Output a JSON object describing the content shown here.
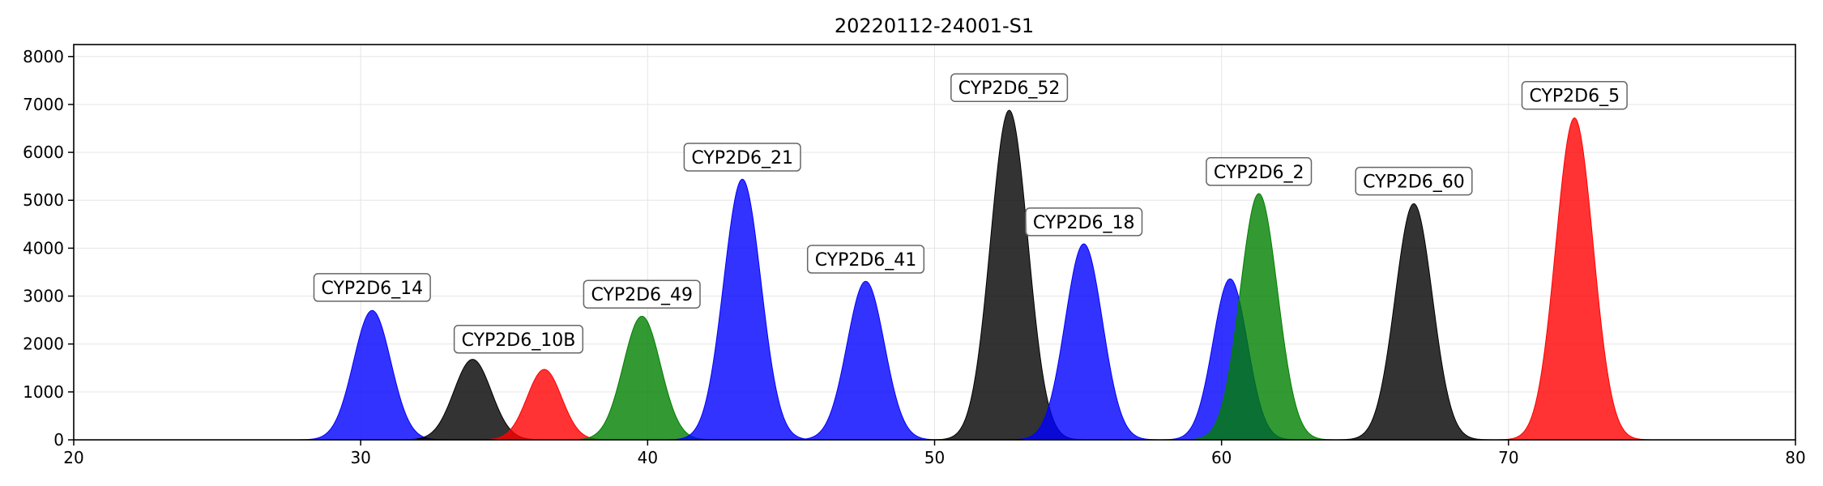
{
  "chart_data": {
    "type": "area",
    "title": "20220112-24001-S1",
    "xlabel": "",
    "ylabel": "",
    "xlim": [
      20,
      80
    ],
    "ylim": [
      0,
      8250
    ],
    "xticks": [
      20,
      30,
      40,
      50,
      60,
      70,
      80
    ],
    "yticks": [
      0,
      1000,
      2000,
      3000,
      4000,
      5000,
      6000,
      7000,
      8000
    ],
    "grid": true,
    "legend": "none",
    "peaks": [
      {
        "center": 30.4,
        "height": 2700,
        "sigma": 0.65,
        "color": "#0000ff",
        "label": "CYP2D6_14",
        "labelX": 30.4,
        "labelY": 3180
      },
      {
        "center": 33.9,
        "height": 1680,
        "sigma": 0.65,
        "color": "#000000",
        "label": "CYP2D6_10B",
        "labelX": 35.5,
        "labelY": 2100
      },
      {
        "center": 36.4,
        "height": 1470,
        "sigma": 0.6,
        "color": "#ff0000",
        "label": "",
        "labelX": 0,
        "labelY": 0
      },
      {
        "center": 39.8,
        "height": 2580,
        "sigma": 0.65,
        "color": "#008000",
        "label": "CYP2D6_49",
        "labelX": 39.8,
        "labelY": 3040
      },
      {
        "center": 43.3,
        "height": 5440,
        "sigma": 0.65,
        "color": "#0000ff",
        "label": "CYP2D6_21",
        "labelX": 43.3,
        "labelY": 5900
      },
      {
        "center": 47.6,
        "height": 3310,
        "sigma": 0.65,
        "color": "#0000ff",
        "label": "CYP2D6_41",
        "labelX": 47.6,
        "labelY": 3770
      },
      {
        "center": 52.6,
        "height": 6880,
        "sigma": 0.65,
        "color": "#000000",
        "label": "CYP2D6_52",
        "labelX": 52.6,
        "labelY": 7350
      },
      {
        "center": 55.2,
        "height": 4090,
        "sigma": 0.65,
        "color": "#0000ff",
        "label": "CYP2D6_18",
        "labelX": 55.2,
        "labelY": 4550
      },
      {
        "center": 60.3,
        "height": 3360,
        "sigma": 0.6,
        "color": "#0000ff",
        "label": "",
        "labelX": 0,
        "labelY": 0
      },
      {
        "center": 61.3,
        "height": 5140,
        "sigma": 0.65,
        "color": "#008000",
        "label": "CYP2D6_2",
        "labelX": 61.3,
        "labelY": 5600
      },
      {
        "center": 66.7,
        "height": 4930,
        "sigma": 0.65,
        "color": "#000000",
        "label": "CYP2D6_60",
        "labelX": 66.7,
        "labelY": 5400
      },
      {
        "center": 72.3,
        "height": 6720,
        "sigma": 0.65,
        "color": "#ff0000",
        "label": "CYP2D6_5",
        "labelX": 72.3,
        "labelY": 7190
      }
    ]
  }
}
